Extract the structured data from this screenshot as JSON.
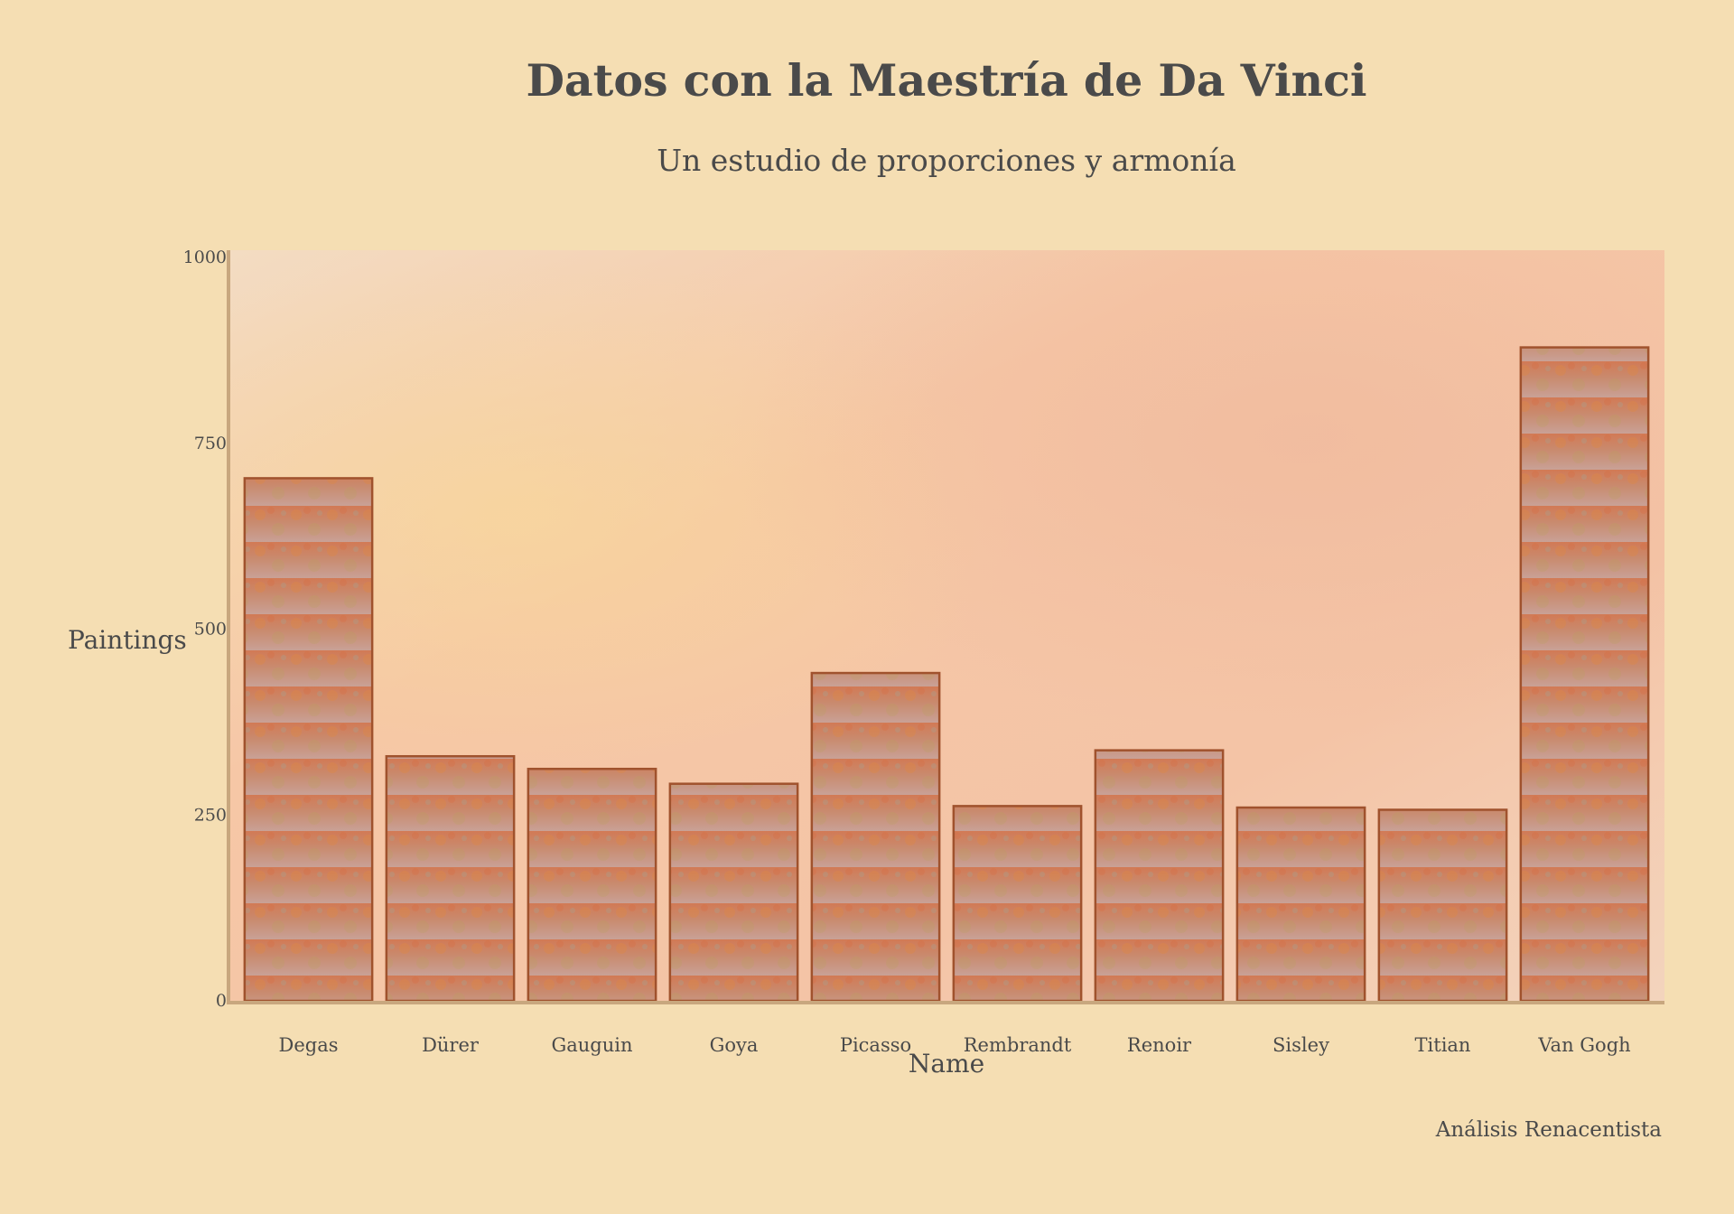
{
  "chart_data": {
    "type": "bar",
    "title": "Datos con la Maestría de Da Vinci",
    "subtitle": "Un estudio de proporciones y armonía",
    "xlabel": "Name",
    "ylabel": "Paintings",
    "categories": [
      "Degas",
      "Dürer",
      "Gauguin",
      "Goya",
      "Picasso",
      "Rembrandt",
      "Renoir",
      "Sisley",
      "Titian",
      "Van Gogh"
    ],
    "values": [
      703,
      329,
      312,
      292,
      441,
      262,
      337,
      260,
      257,
      879
    ],
    "ylim": [
      0,
      1000
    ],
    "yticks": [
      0,
      250,
      500,
      750,
      1000
    ],
    "grid": false,
    "legend": "none"
  },
  "footnote": "Análisis Renacentista",
  "colors": {
    "background": "#f5deb3",
    "plot_wash": "#f6c9a8",
    "bar_fill": "#c98a6a",
    "bar_edge": "#a0522d",
    "axis": "#c8a77e",
    "text": "#4a4a4a"
  }
}
